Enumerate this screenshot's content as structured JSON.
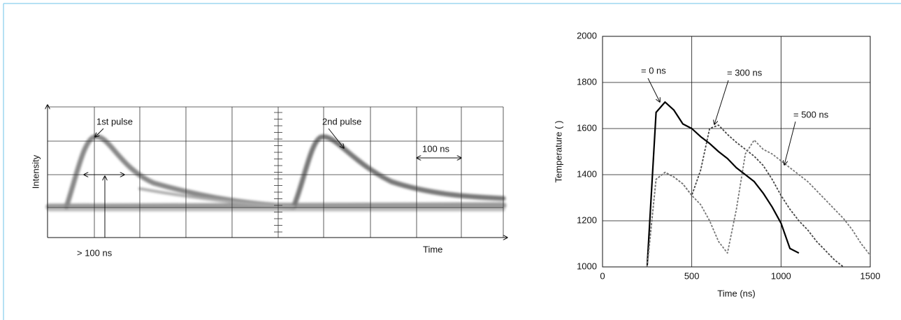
{
  "chart_data": [
    {
      "type": "trace",
      "x_label": "Time",
      "y_label": "Intensity",
      "annotations": [
        "1st pulse",
        "2nd pulse",
        "100 ns",
        "> 100 ns"
      ]
    },
    {
      "type": "line",
      "x_label": "Time (ns)",
      "y_label": "Temperature (   )",
      "x": [
        250,
        300,
        350,
        400,
        450,
        500,
        550,
        600,
        650,
        700,
        750,
        800,
        850,
        900,
        950,
        1000,
        1050,
        1100,
        1150,
        1200,
        1250,
        1300,
        1350,
        1400,
        1450,
        1500
      ],
      "series": [
        {
          "name": "=  0 ns",
          "color": "#000000",
          "values": [
            1000,
            1670,
            1715,
            1680,
            1620,
            1600,
            1565,
            1535,
            1500,
            1470,
            1430,
            1400,
            1370,
            1320,
            1260,
            1190,
            1080,
            1060,
            null,
            null,
            null,
            null,
            null,
            null,
            null,
            null
          ]
        },
        {
          "name": "= 300 ns",
          "color": "#444444",
          "values": [
            1000,
            1380,
            1410,
            1390,
            1360,
            1310,
            1420,
            1600,
            1615,
            1575,
            1540,
            1510,
            1480,
            1440,
            1380,
            1310,
            1250,
            1200,
            1160,
            1110,
            1070,
            1030,
            1000,
            null,
            null,
            null
          ]
        },
        {
          "name": "= 500 ns",
          "color": "#777777",
          "values": [
            1000,
            1380,
            1410,
            1390,
            1360,
            1310,
            1270,
            1200,
            1110,
            1060,
            1250,
            1490,
            1550,
            1510,
            1490,
            1460,
            1430,
            1400,
            1370,
            1330,
            1290,
            1250,
            1210,
            1160,
            1100,
            1050
          ]
        }
      ],
      "xlim": [
        0,
        1500
      ],
      "xticks": [
        0,
        500,
        1000,
        1500
      ],
      "ylim": [
        1000,
        2000
      ],
      "yticks": [
        1000,
        1200,
        1400,
        1600,
        1800,
        2000
      ],
      "grid": true
    }
  ]
}
